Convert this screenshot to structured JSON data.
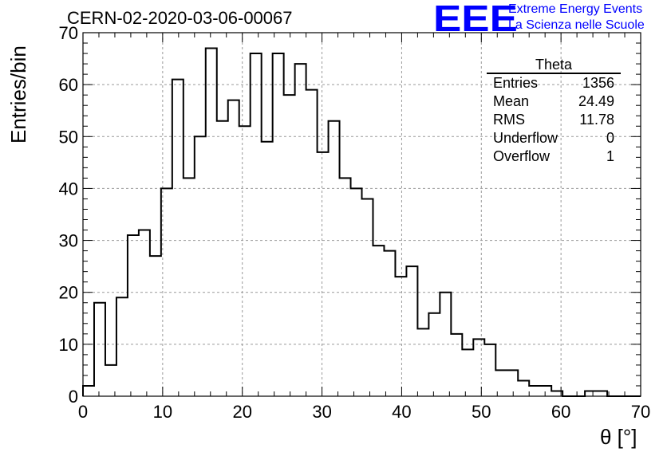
{
  "header": {
    "title": "CERN-02-2020-03-06-00067",
    "logo_mark": "EEE",
    "logo_line1": "Extreme Energy Events",
    "logo_line2": "La Scienza nelle Scuole"
  },
  "stats": {
    "title": "Theta",
    "rows": [
      {
        "label": "Entries",
        "value": "1356"
      },
      {
        "label": "Mean",
        "value": "24.49"
      },
      {
        "label": "RMS",
        "value": "11.78"
      },
      {
        "label": "Underflow",
        "value": "0"
      },
      {
        "label": "Overflow",
        "value": "1"
      }
    ]
  },
  "colors": {
    "logo": "#0000ff",
    "line": "#000000",
    "grid": "#999999"
  },
  "chart_data": {
    "type": "histogram",
    "title": "CERN-02-2020-03-06-00067",
    "xlabel": "θ [°]",
    "ylabel": "Entries/bin",
    "xlim": [
      0,
      70
    ],
    "ylim": [
      0,
      70
    ],
    "bin_width": 1.4,
    "xticks": [
      0,
      10,
      20,
      30,
      40,
      50,
      60,
      70
    ],
    "yticks": [
      0,
      10,
      20,
      30,
      40,
      50,
      60,
      70
    ],
    "grid": true,
    "values": [
      2,
      18,
      6,
      19,
      31,
      32,
      27,
      40,
      61,
      42,
      50,
      67,
      53,
      57,
      52,
      66,
      49,
      66,
      58,
      64,
      59,
      47,
      53,
      42,
      40,
      38,
      29,
      28,
      23,
      25,
      13,
      16,
      20,
      12,
      9,
      11,
      10,
      5,
      5,
      3,
      2,
      2,
      1,
      0,
      0,
      1,
      1,
      0,
      0,
      0
    ]
  }
}
